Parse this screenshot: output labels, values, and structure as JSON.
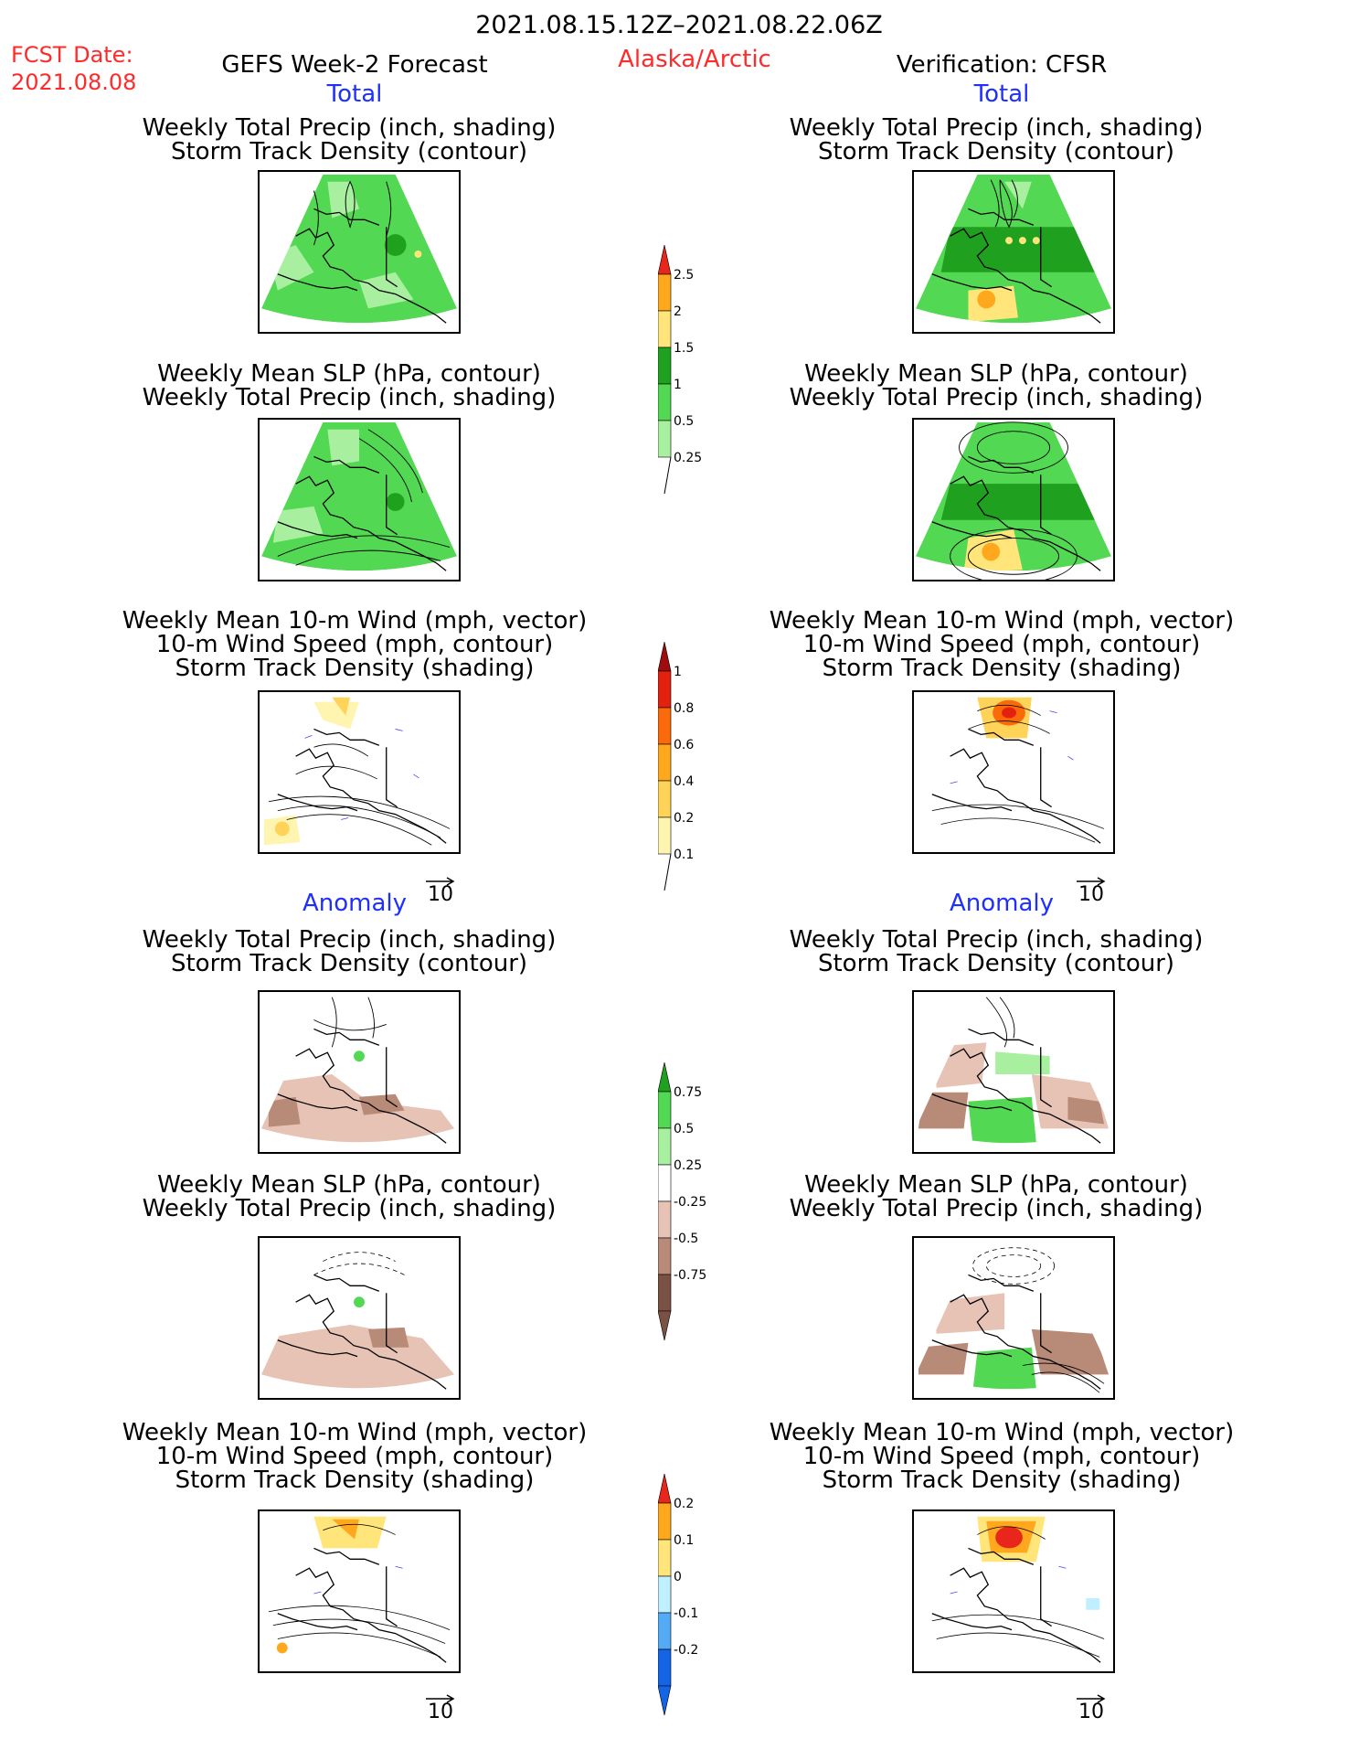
{
  "header": {
    "date_range": "2021.08.15.12Z–2021.08.22.06Z",
    "fcst_label": "FCST Date:",
    "fcst_date": "2021.08.08",
    "forecast_title": "GEFS Week-2 Forecast",
    "region": "Alaska/Arctic",
    "verification": "Verification: CFSR"
  },
  "sections": {
    "total": "Total",
    "anomaly": "Anomaly"
  },
  "panel_titles": {
    "precip_storm": [
      "Weekly Total Precip (inch, shading)",
      "Storm Track Density (contour)"
    ],
    "slp_precip": [
      "Weekly Mean SLP (hPa, contour)",
      "Weekly Total Precip (inch, shading)"
    ],
    "wind_storm": [
      "Weekly Mean 10-m Wind (mph, vector)",
      "10-m Wind Speed (mph, contour)",
      "Storm Track Density (shading)"
    ]
  },
  "vector_ref": "10",
  "colorbars": {
    "precip_total": {
      "labels": [
        "2.5",
        "2",
        "1.5",
        "1",
        "0.5",
        "0.25"
      ],
      "colors": [
        "#e8261b",
        "#ffa81e",
        "#ffe57a",
        "#1fa01f",
        "#52d852",
        "#a8f0a0"
      ]
    },
    "storm_total": {
      "labels": [
        "1",
        "0.8",
        "0.6",
        "0.4",
        "0.2",
        "0.1"
      ],
      "colors": [
        "#9e0d0d",
        "#e3210f",
        "#fa6a0a",
        "#ffa81e",
        "#ffd258",
        "#fff5b0"
      ]
    },
    "precip_anom": {
      "labels": [
        "0.75",
        "0.5",
        "0.25",
        "-0.25",
        "-0.5",
        "-0.75"
      ],
      "colors": [
        "#1fa01f",
        "#52d852",
        "#a8f0a0",
        "#ffffff",
        "#e6c3b5",
        "#b88a78",
        "#7a5243"
      ]
    },
    "storm_anom": {
      "labels": [
        "0.2",
        "0.1",
        "0",
        "-0.1",
        "-0.2"
      ],
      "colors": [
        "#e8261b",
        "#ffa81e",
        "#ffe57a",
        "#c0f0ff",
        "#55aaf5",
        "#1464e6"
      ]
    }
  }
}
